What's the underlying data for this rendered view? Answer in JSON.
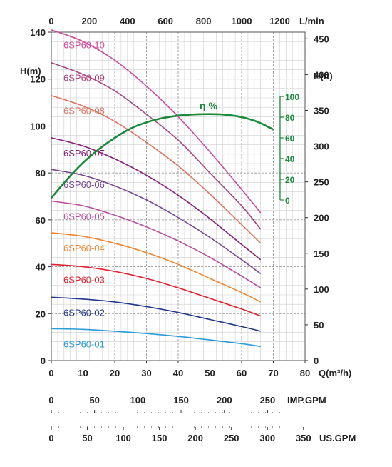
{
  "chart_data": {
    "type": "line",
    "title": "",
    "top_axis": {
      "label": "L/min",
      "ticks": [
        "0",
        "200",
        "400",
        "600",
        "800",
        "1000",
        "1200"
      ],
      "range": [
        0,
        1333.33
      ]
    },
    "x_axis": {
      "label": "Q(m³/h)",
      "ticks": [
        "0",
        "10",
        "20",
        "30",
        "40",
        "50",
        "60",
        "70",
        "80"
      ],
      "range": [
        0,
        80
      ]
    },
    "y_left": {
      "label": "H(m)",
      "ticks": [
        "0",
        "20",
        "40",
        "60",
        "80",
        "100",
        "120",
        "140"
      ],
      "range": [
        0,
        140
      ]
    },
    "y_right": {
      "label": "H(ft)",
      "ticks": [
        "0",
        "50",
        "100",
        "150",
        "200",
        "250",
        "300",
        "350",
        "400",
        "450"
      ],
      "range": [
        0,
        459.3
      ]
    },
    "eff_axis": {
      "label": "η %",
      "ticks": [
        "0",
        "20",
        "40",
        "60",
        "80",
        "100"
      ],
      "range": [
        0,
        100
      ]
    },
    "imp_axis": {
      "label": "IMP.GPM",
      "ticks": [
        "0",
        "50",
        "100",
        "150",
        "200",
        "250"
      ],
      "max_at_x80": 293.3
    },
    "us_axis": {
      "label": "US.GPM",
      "ticks": [
        "0",
        "50",
        "100",
        "150",
        "200",
        "250",
        "300",
        "350"
      ],
      "max_at_x80": 352.2
    },
    "grid": true,
    "x": [
      0,
      10,
      20,
      30,
      40,
      50,
      60,
      66
    ],
    "series": [
      {
        "name": "6SP60-10",
        "color": "#d04a9c",
        "values": [
          141,
          136,
          128,
          117,
          104,
          89,
          73,
          63
        ]
      },
      {
        "name": "6SP60-09",
        "color": "#a8457f",
        "values": [
          127,
          122,
          115,
          105,
          94,
          80,
          66,
          56
        ]
      },
      {
        "name": "6SP60-08",
        "color": "#e0745e",
        "values": [
          113,
          108.5,
          102,
          93,
          83,
          71,
          58,
          50
        ]
      },
      {
        "name": "6SP60-07",
        "color": "#8a1e78",
        "values": [
          95,
          91.5,
          86,
          79,
          70.5,
          60.5,
          49.5,
          43
        ]
      },
      {
        "name": "6SP60-06",
        "color": "#7b4a94",
        "values": [
          81.5,
          79,
          74.5,
          68.5,
          61,
          52.5,
          43,
          37
        ]
      },
      {
        "name": "6SP60-05",
        "color": "#bb4e9e",
        "values": [
          68,
          66,
          62,
          57,
          51,
          44,
          36,
          31
        ]
      },
      {
        "name": "6SP60-04",
        "color": "#ef8530",
        "values": [
          54.5,
          53,
          50,
          46,
          41,
          35,
          29,
          25
        ]
      },
      {
        "name": "6SP60-03",
        "color": "#e0202c",
        "values": [
          41,
          40,
          38,
          35,
          31,
          26.5,
          22,
          19
        ]
      },
      {
        "name": "6SP60-02",
        "color": "#23398c",
        "values": [
          27,
          26.2,
          25,
          23,
          20.5,
          17.5,
          14.5,
          12.5
        ]
      },
      {
        "name": "6SP60-01",
        "color": "#2b9bd8",
        "values": [
          13.6,
          13.3,
          12.5,
          11.5,
          10.3,
          8.8,
          7.2,
          6
        ]
      }
    ],
    "efficiency": {
      "name": "η %",
      "color": "#1a8a3a",
      "x": [
        0,
        5,
        10,
        15,
        20,
        25,
        30,
        35,
        40,
        45,
        50,
        55,
        60,
        65,
        70
      ],
      "values": [
        2,
        20,
        36,
        49,
        60,
        69,
        75,
        79,
        81.5,
        82.6,
        83,
        82.3,
        80,
        75.5,
        68
      ]
    }
  }
}
